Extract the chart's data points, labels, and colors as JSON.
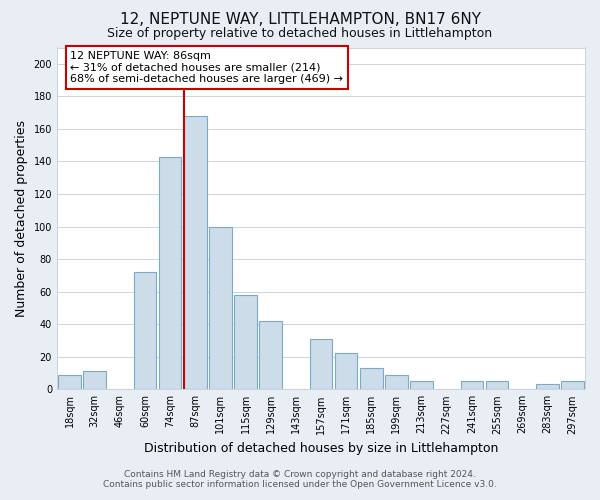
{
  "title": "12, NEPTUNE WAY, LITTLEHAMPTON, BN17 6NY",
  "subtitle": "Size of property relative to detached houses in Littlehampton",
  "xlabel": "Distribution of detached houses by size in Littlehampton",
  "ylabel": "Number of detached properties",
  "footer_line1": "Contains HM Land Registry data © Crown copyright and database right 2024.",
  "footer_line2": "Contains public sector information licensed under the Open Government Licence v3.0.",
  "bar_labels": [
    "18sqm",
    "32sqm",
    "46sqm",
    "60sqm",
    "74sqm",
    "87sqm",
    "101sqm",
    "115sqm",
    "129sqm",
    "143sqm",
    "157sqm",
    "171sqm",
    "185sqm",
    "199sqm",
    "213sqm",
    "227sqm",
    "241sqm",
    "255sqm",
    "269sqm",
    "283sqm",
    "297sqm"
  ],
  "bar_values": [
    9,
    11,
    0,
    72,
    143,
    168,
    100,
    58,
    42,
    0,
    31,
    22,
    13,
    9,
    5,
    0,
    5,
    5,
    0,
    3,
    5
  ],
  "bar_color": "#ccdce8",
  "bar_edge_color": "#7aaac8",
  "highlight_x_label": "87sqm",
  "highlight_line_color": "#cc0000",
  "annotation_title": "12 NEPTUNE WAY: 86sqm",
  "annotation_line1": "← 31% of detached houses are smaller (214)",
  "annotation_line2": "68% of semi-detached houses are larger (469) →",
  "annotation_box_color": "#ffffff",
  "annotation_box_edge_color": "#cc0000",
  "ylim": [
    0,
    210
  ],
  "yticks": [
    0,
    20,
    40,
    60,
    80,
    100,
    120,
    140,
    160,
    180,
    200
  ],
  "background_color": "#e8eef4",
  "plot_background_color": "#ffffff",
  "grid_color": "#c8d4de",
  "title_fontsize": 11,
  "subtitle_fontsize": 9,
  "axis_label_fontsize": 9,
  "tick_fontsize": 7,
  "annotation_fontsize": 8,
  "footer_fontsize": 6.5
}
